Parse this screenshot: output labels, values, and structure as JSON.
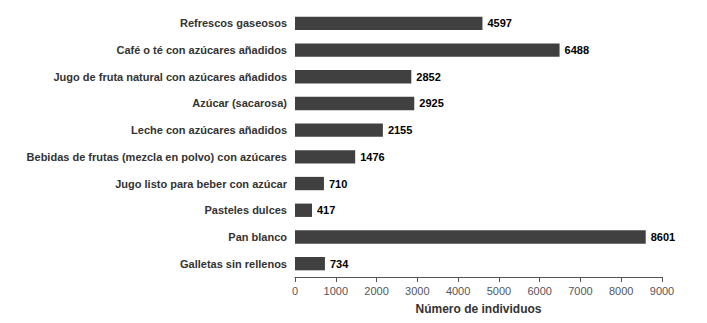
{
  "chart_data": {
    "type": "bar",
    "orientation": "horizontal",
    "categories": [
      "Galletas sin rellenos",
      "Pan blanco",
      "Pasteles dulces",
      "Jugo listo para beber con azúcar",
      "Bebidas de frutas (mezcla en polvo) con azúcares",
      "Leche con azúcares añadidos",
      "Azúcar (sacarosa)",
      "Jugo de fruta natural con azúcares añadidos",
      "Café o té con azúcares añadidos",
      "Refrescos gaseosos"
    ],
    "values": [
      734,
      8601,
      417,
      710,
      1476,
      2155,
      2925,
      2852,
      6488,
      4597
    ],
    "color": "#404040",
    "xlabel": "Número de individuos",
    "xlim": [
      0,
      9000
    ],
    "xticks": [
      0,
      1000,
      2000,
      3000,
      4000,
      5000,
      6000,
      7000,
      8000,
      9000
    ],
    "grid": false,
    "data_labels": true
  }
}
